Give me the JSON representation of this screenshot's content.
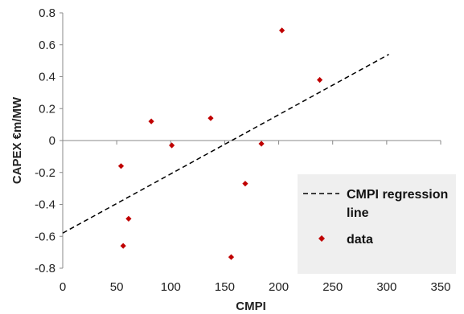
{
  "chart_data": {
    "type": "scatter",
    "xlabel": "CMPI",
    "ylabel": "CAPEX €m/MW",
    "xlim": [
      0,
      350
    ],
    "ylim": [
      -0.8,
      0.8
    ],
    "x_ticks": [
      0,
      50,
      100,
      150,
      200,
      250,
      300,
      350
    ],
    "y_ticks": [
      -0.8,
      -0.6,
      -0.4,
      -0.2,
      0,
      0.2,
      0.4,
      0.6,
      0.8
    ],
    "x_tick_labels": [
      "0",
      "50",
      "100",
      "150",
      "200",
      "250",
      "300",
      "350"
    ],
    "y_tick_labels": [
      "-0.8",
      "-0.6",
      "-0.4",
      "-0.2",
      "0",
      "0.2",
      "0.4",
      "0.6",
      "0.8"
    ],
    "grid": false,
    "legend_position": "bottom-right",
    "series": [
      {
        "name": "data",
        "type": "scatter",
        "marker": "diamond",
        "color": "#c00000",
        "x": [
          54,
          56,
          61,
          82,
          101,
          137,
          156,
          169,
          184,
          203,
          238
        ],
        "y": [
          -0.16,
          -0.66,
          -0.49,
          0.12,
          -0.03,
          0.14,
          -0.73,
          -0.27,
          -0.02,
          0.69,
          0.38
        ]
      },
      {
        "name": "CMPI regression line",
        "legend_lines": [
          "CMPI regression",
          "line"
        ],
        "type": "line",
        "style": "dashed",
        "color": "#000000",
        "x": [
          0,
          302
        ],
        "y": [
          -0.58,
          0.54
        ]
      }
    ]
  }
}
